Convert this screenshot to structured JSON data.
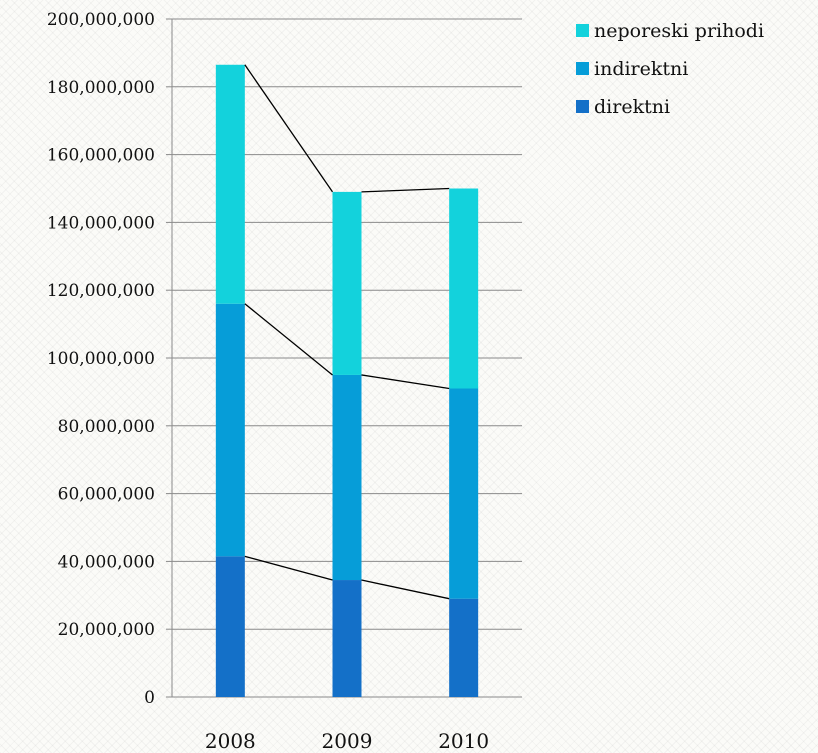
{
  "chart_data": {
    "type": "bar",
    "stacked": true,
    "categories": [
      "2008",
      "2009",
      "2010"
    ],
    "series": [
      {
        "name": "direktni",
        "color": "#1470c8",
        "values": [
          41500000,
          34500000,
          29000000
        ]
      },
      {
        "name": "indirektni",
        "color": "#069dd8",
        "values": [
          74500000,
          60500000,
          62000000
        ]
      },
      {
        "name": "neporeski prihodi",
        "color": "#13d2dc",
        "values": [
          70500000,
          54000000,
          59000000
        ]
      }
    ],
    "y_ticks": [
      "0",
      "20,000,000",
      "40,000,000",
      "60,000,000",
      "80,000,000",
      "100,000,000",
      "120,000,000",
      "140,000,000",
      "160,000,000",
      "180,000,000",
      "200,000,000"
    ],
    "ylim": [
      0,
      200000000
    ],
    "grid": true,
    "legend": {
      "position": "top-right",
      "entries": [
        "neporeski prihodi",
        "indirektni",
        "direktni"
      ]
    },
    "series_lines": true
  }
}
